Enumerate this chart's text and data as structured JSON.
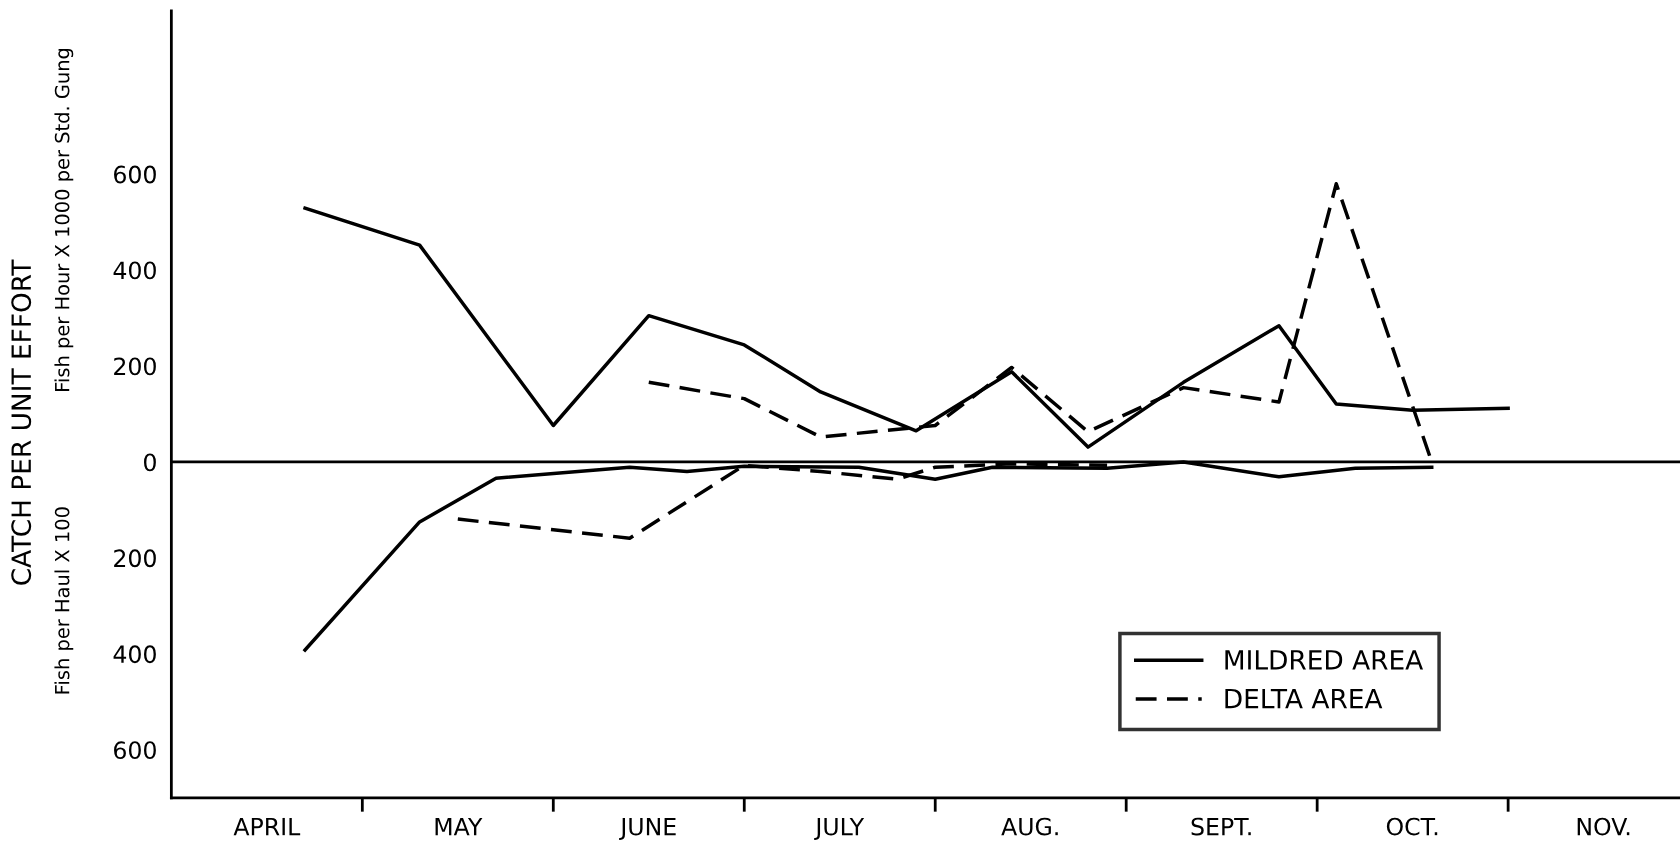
{
  "chart_data": {
    "type": "line",
    "ylabel": "CATCH PER UNIT EFFORT",
    "annotations": [
      "Fish per Hour X 1000 per Std. Gung",
      "Fish per Haul X 100"
    ],
    "categories": [
      null,
      null,
      null,
      null,
      null,
      "APRIL",
      null,
      null,
      null,
      null,
      null,
      null,
      null,
      null,
      null,
      "MAY",
      null,
      null,
      null,
      null,
      null,
      null,
      null,
      null,
      null,
      "JUNE",
      null,
      null,
      null,
      null,
      null,
      null,
      null,
      null,
      null,
      "JULY",
      null,
      null,
      null,
      null,
      null,
      null,
      null,
      null,
      null,
      "AUG.",
      null,
      null,
      null,
      null,
      null,
      null,
      null,
      null,
      null,
      "SEPT.",
      null,
      null,
      null,
      null,
      null,
      null,
      null,
      null,
      null,
      "OCT.",
      null,
      null,
      null,
      null,
      null,
      null,
      null,
      null,
      null,
      "NOV.",
      null,
      null,
      null,
      null
    ],
    "series": [
      {
        "name": "MILDRED AREA",
        "color": "#000000",
        "line_style": "solid",
        "values": [
          null,
          null,
          null,
          null,
          null,
          null,
          null,
          529,
          null,
          null,
          null,
          null,
          null,
          452,
          null,
          null,
          null,
          null,
          null,
          null,
          76,
          null,
          null,
          null,
          null,
          305,
          null,
          null,
          null,
          null,
          244,
          null,
          null,
          null,
          146,
          null,
          null,
          null,
          null,
          65,
          null,
          null,
          null,
          null,
          188,
          null,
          null,
          null,
          31,
          null,
          null,
          null,
          null,
          166,
          null,
          null,
          null,
          null,
          284,
          null,
          null,
          121,
          null,
          null,
          null,
          108,
          null,
          null,
          null,
          null,
          112,
          null,
          null,
          null,
          null,
          null,
          null,
          null,
          null,
          null
        ]
      },
      {
        "color": "#000000",
        "line_style": "solid",
        "values": [
          null,
          null,
          null,
          null,
          null,
          null,
          null,
          -392,
          null,
          null,
          null,
          null,
          null,
          -125,
          null,
          null,
          null,
          -34,
          null,
          null,
          null,
          null,
          null,
          null,
          -11,
          null,
          null,
          -20,
          null,
          null,
          -9,
          null,
          null,
          null,
          null,
          null,
          -11,
          null,
          null,
          null,
          -36,
          null,
          null,
          -11,
          null,
          null,
          null,
          null,
          null,
          -13,
          null,
          null,
          null,
          0,
          null,
          null,
          null,
          null,
          -31,
          null,
          null,
          null,
          -13,
          null,
          null,
          null,
          -11,
          null,
          null,
          null,
          null,
          null,
          null,
          null,
          null,
          null,
          null,
          null,
          null,
          null
        ]
      },
      {
        "name": "DELTA AREA",
        "color": "#000000",
        "line_style": "dashed",
        "values": [
          null,
          null,
          null,
          null,
          null,
          null,
          null,
          null,
          null,
          null,
          null,
          null,
          null,
          null,
          null,
          null,
          null,
          null,
          null,
          null,
          null,
          null,
          null,
          null,
          null,
          166,
          null,
          null,
          null,
          null,
          132,
          null,
          null,
          null,
          52,
          null,
          null,
          null,
          null,
          null,
          76,
          null,
          null,
          null,
          197,
          null,
          null,
          null,
          63,
          null,
          null,
          null,
          null,
          155,
          null,
          null,
          null,
          null,
          125,
          null,
          null,
          580,
          null,
          null,
          null,
          null,
          0,
          null,
          null,
          null,
          null,
          null,
          null,
          null,
          null,
          null,
          null,
          null,
          null,
          null
        ]
      },
      {
        "color": "#000000",
        "line_style": "dashed",
        "values": [
          null,
          null,
          null,
          null,
          null,
          null,
          null,
          null,
          null,
          null,
          null,
          null,
          null,
          null,
          null,
          -119,
          null,
          null,
          null,
          null,
          null,
          null,
          null,
          null,
          -159,
          null,
          null,
          null,
          null,
          null,
          -7,
          null,
          null,
          null,
          -20,
          null,
          null,
          null,
          -36,
          null,
          -11,
          null,
          null,
          null,
          -4,
          null,
          null,
          null,
          null,
          -7,
          null,
          null,
          null,
          null,
          null,
          null,
          null,
          null,
          null,
          null,
          null,
          null,
          null,
          null,
          null,
          null,
          null,
          null,
          null,
          null,
          null,
          null,
          null,
          null,
          null,
          null,
          null,
          null,
          null,
          null
        ]
      }
    ],
    "ylim": [
      -700,
      940
    ],
    "yticks": [
      {
        "value": -600,
        "label": "600"
      },
      {
        "value": -400,
        "label": "400"
      },
      {
        "value": -200,
        "label": "200"
      },
      0,
      200,
      400,
      600
    ],
    "ref_lines": [
      {
        "axis": "y",
        "value": 0,
        "color": "#000000"
      }
    ],
    "legend": "bottom right",
    "grid": false
  }
}
